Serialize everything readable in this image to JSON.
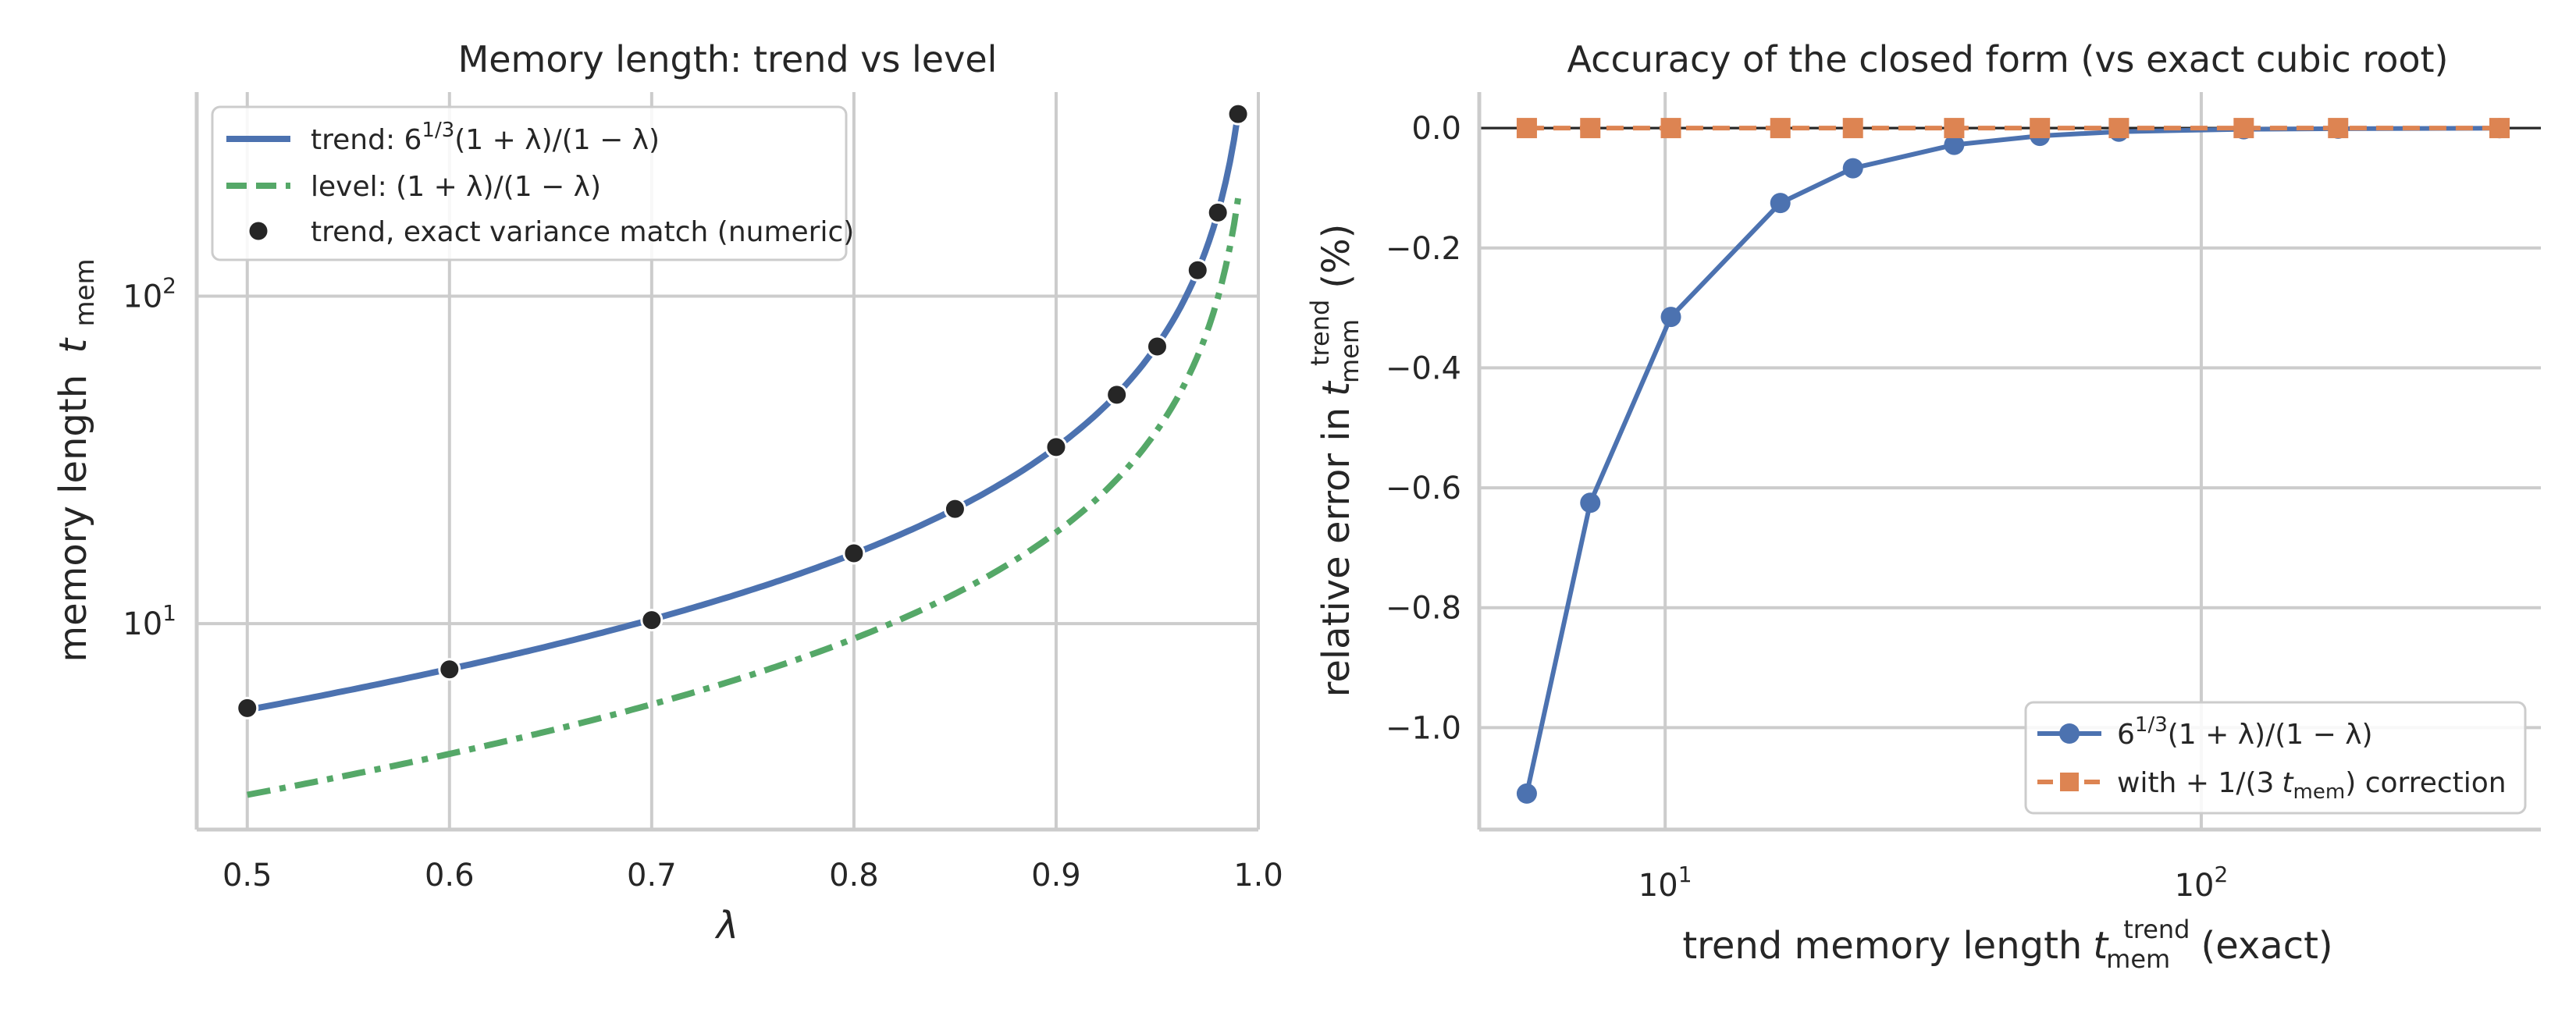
{
  "chart_data": [
    {
      "type": "line",
      "title": "Memory length: trend vs level",
      "xlabel": "λ",
      "ylabel_main": "memory length",
      "ylabel_sym": "t",
      "ylabel_sub": "mem",
      "xlim": [
        0.475,
        1.0
      ],
      "ylim": [
        2.35,
        420
      ],
      "yscale": "log",
      "xticks": [
        0.5,
        0.6,
        0.7,
        0.8,
        0.9,
        1.0
      ],
      "xtick_labels": [
        "0.5",
        "0.6",
        "0.7",
        "0.8",
        "0.9",
        "1.0"
      ],
      "yticks": [
        10,
        100
      ],
      "ytick_labels": [
        {
          "base": "10",
          "exp": "1"
        },
        {
          "base": "10",
          "exp": "2"
        }
      ],
      "grid": true,
      "legend_position": "upper left",
      "series": [
        {
          "name": "trend:  6^{1/3}(1 + λ)/(1 − λ)",
          "legend_parts": [
            "trend:  6",
            "1/3",
            "(1 + λ)/(1 − λ)"
          ],
          "style": "solid",
          "color": "#4c72b0",
          "formula": "1.817*(1+x)/(1-x)",
          "x_range": [
            0.5,
            0.99
          ]
        },
        {
          "name": "level:  (1 + λ)/(1 − λ)",
          "legend_parts": [
            "level:  (1 + λ)/(1 − λ)"
          ],
          "style": "dashdot",
          "color": "#55a868",
          "formula": "(1+x)/(1-x)",
          "x_range": [
            0.5,
            0.99
          ]
        },
        {
          "name": "trend, exact variance match (numeric)",
          "legend_parts": [
            "trend, exact variance match (numeric)"
          ],
          "style": "markers",
          "color": "#262626",
          "x": [
            0.5,
            0.6,
            0.7,
            0.8,
            0.85,
            0.9,
            0.93,
            0.95,
            0.97,
            0.98,
            0.99
          ],
          "y": [
            5.52,
            7.25,
            10.25,
            16.4,
            22.4,
            34.6,
            50.0,
            70.2,
            120,
            180,
            360
          ]
        }
      ]
    },
    {
      "type": "line",
      "title": "Accuracy of the closed form (vs exact cubic root)",
      "xlabel_main": "trend memory length",
      "xlabel_sym": "t",
      "xlabel_sub": "mem",
      "xlabel_sup": "trend",
      "xlabel_tail": "(exact)",
      "ylabel_main": "relative error in",
      "ylabel_sym": "t",
      "ylabel_sub": "mem",
      "ylabel_sup": "trend",
      "ylabel_tail": "(%)",
      "xscale": "log",
      "xlim": [
        4.5,
        430
      ],
      "ylim": [
        -1.17,
        0.06
      ],
      "xticks": [
        10,
        100
      ],
      "xtick_labels": [
        {
          "base": "10",
          "exp": "1"
        },
        {
          "base": "10",
          "exp": "2"
        }
      ],
      "yticks": [
        0.0,
        -0.2,
        -0.4,
        -0.6,
        -0.8,
        -1.0
      ],
      "ytick_labels": [
        "0.0",
        "−0.2",
        "−0.4",
        "−0.6",
        "−0.8",
        "−1.0"
      ],
      "grid": true,
      "reference_line_y": 0.0,
      "legend_position": "lower right",
      "series": [
        {
          "name": "6^{1/3}(1 + λ)/(1 − λ)",
          "legend_parts": [
            "6",
            "1/3",
            "(1 + λ)/(1 − λ)"
          ],
          "style": "line-circle",
          "color": "#4c72b0",
          "x": [
            5.52,
            7.25,
            10.25,
            16.4,
            22.4,
            34.6,
            50.0,
            70.2,
            120,
            180,
            360
          ],
          "y": [
            -1.11,
            -0.625,
            -0.315,
            -0.125,
            -0.067,
            -0.028,
            -0.013,
            -0.006,
            -0.002,
            -0.001,
            -0.0002
          ]
        },
        {
          "name": "with + 1/(3 t_mem) correction",
          "legend_parts": [
            "with + 1/(3",
            "t",
            "mem",
            ") correction"
          ],
          "style": "dashed-square",
          "color": "#dd8452",
          "x": [
            5.52,
            7.25,
            10.25,
            16.4,
            22.4,
            34.6,
            50.0,
            70.2,
            120,
            180,
            360
          ],
          "y": [
            0,
            0,
            0,
            0,
            0,
            0,
            0,
            0,
            0,
            0,
            0
          ]
        }
      ]
    }
  ]
}
